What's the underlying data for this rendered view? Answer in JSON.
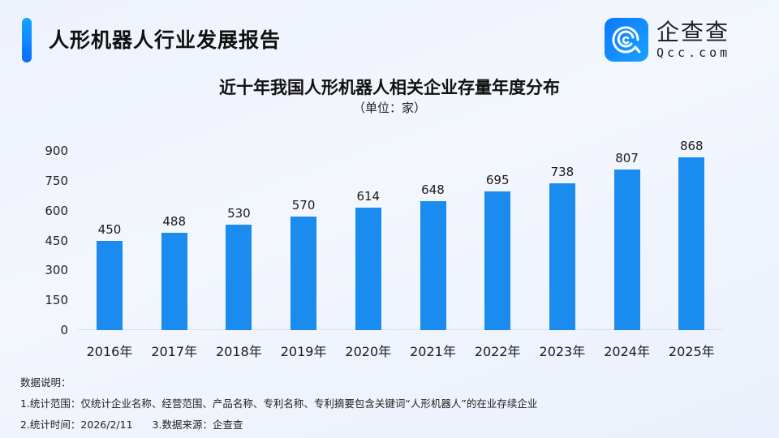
{
  "header": {
    "report_title": "人形机器人行业发展报告",
    "logo": {
      "icon": "qcc-logo-icon",
      "name_cn": "企查查",
      "name_en": "Qcc.com"
    }
  },
  "colors": {
    "accent": "#0a78ff",
    "bar": "#1a8cf0",
    "axis": "#d9dee8"
  },
  "chart_data": {
    "type": "bar",
    "title": "近十年我国人形机器人相关企业存量年度分布",
    "subtitle": "（单位：家）",
    "categories": [
      "2016年",
      "2017年",
      "2018年",
      "2019年",
      "2020年",
      "2021年",
      "2022年",
      "2023年",
      "2024年",
      "2025年"
    ],
    "values": [
      450,
      488,
      530,
      570,
      614,
      648,
      695,
      738,
      807,
      868
    ],
    "xlabel": "",
    "ylabel": "",
    "yticks": [
      0,
      150,
      300,
      450,
      600,
      750,
      900
    ],
    "ylim": [
      0,
      900
    ],
    "grid": false,
    "legend": null,
    "data_labels": true
  },
  "notes": {
    "heading": "数据说明：",
    "item1": "1.统计范围：仅统计企业名称、经营范围、产品名称、专利名称、专利摘要包含关键词“人形机器人”的在业存续企业",
    "item2": "2.统计时间：2026/2/11",
    "item3": "3.数据来源：企查查"
  }
}
